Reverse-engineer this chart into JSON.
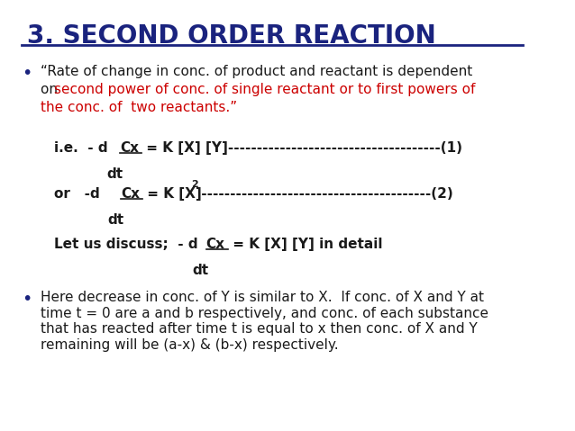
{
  "title": "3. SECOND ORDER REACTION",
  "title_color": "#1a237e",
  "bg_color": "#ffffff",
  "border_color": "#cccccc",
  "bullet_color": "#1a237e",
  "dark_color": "#1a1a1a",
  "red_color": "#cc0000",
  "bullet1_line1": "“Rate of change in conc. of product and reactant is dependent",
  "bullet1_line2_black": "on ",
  "bullet1_line2_red": "second power of conc. of single reactant or to first powers of",
  "bullet1_line3_red": "the conc. of  two reactants.”",
  "eq1_a": "i.e.  - d",
  "eq1_cx": "Cx",
  "eq1_b": " = K [X] [Y]-------------------------------------(1)",
  "eq1_dt": "dt",
  "eq2_a": "or   -d",
  "eq2_cx": "Cx",
  "eq2_b": " = K [X]",
  "eq2_sup": "2",
  "eq2_c": " ----------------------------------------(2)",
  "eq2_dt": "dt",
  "let_a": "Let us discuss;  - d",
  "let_cx": "Cx",
  "let_b": " = K [X] [Y] in detail",
  "let_dt": "dt",
  "bullet2": "Here decrease in conc. of Y is similar to X.  If conc. of X and Y at\ntime t = 0 are a and b respectively, and conc. of each substance\nthat has reacted after time t is equal to x then conc. of X and Y\nremaining will be (a-x) & (b-x) respectively."
}
